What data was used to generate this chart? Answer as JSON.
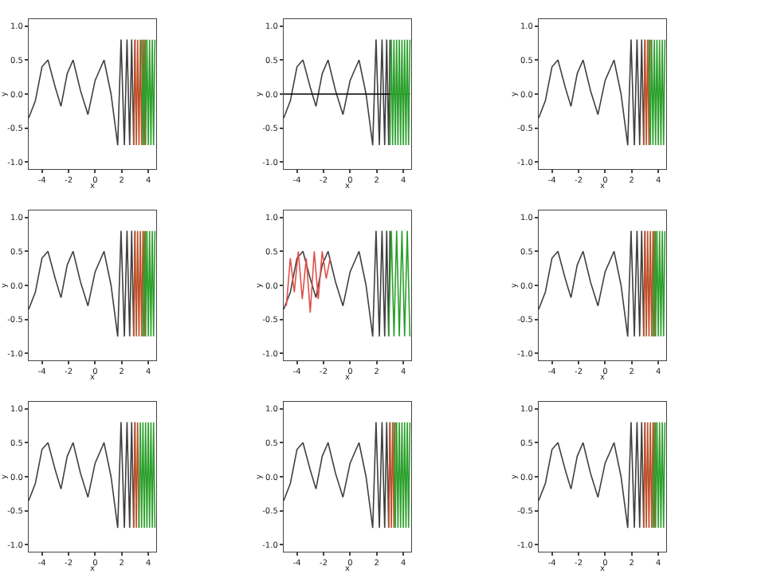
{
  "chart_data": [
    {
      "type": "line",
      "xlabel": "x",
      "ylabel": "y",
      "xlim": [
        -5,
        4.6
      ],
      "ylim": [
        -1.1,
        1.1
      ],
      "xticks": [
        -4,
        -2,
        0,
        2,
        4
      ],
      "yticks": [
        {
          "value": -1,
          "label": "-1.0"
        },
        {
          "value": -0.5,
          "label": "-0.5"
        },
        {
          "value": 0,
          "label": "0.0"
        },
        {
          "value": 0.5,
          "label": "0.5"
        },
        {
          "value": 1,
          "label": "1.0"
        }
      ],
      "series": [
        {
          "color": "#404040",
          "x": [
            -5,
            -4.5,
            -4,
            -3.55,
            -3,
            -2.57,
            -2.1,
            -1.66,
            -1.1,
            -0.54,
            0,
            0.67,
            1.2,
            1.7,
            1.95,
            2.2,
            2.4,
            2.6,
            2.75,
            2.9,
            3.0
          ],
          "values": [
            -0.35,
            -0.1,
            0.4,
            0.5,
            0.1,
            -0.18,
            0.3,
            0.5,
            0.05,
            -0.3,
            0.2,
            0.5,
            0.0,
            -0.75,
            0.8,
            -0.75,
            0.8,
            -0.75,
            0.8,
            -0.75,
            0.8
          ]
        },
        {
          "color": "#c0502a",
          "x": [
            2.9,
            3.0,
            3.1,
            3.2,
            3.3,
            3.4,
            3.5,
            3.6,
            3.7,
            3.8
          ],
          "values": [
            -0.75,
            0.8,
            -0.75,
            0.8,
            -0.75,
            0.8,
            -0.75,
            0.8,
            -0.75,
            0.8
          ]
        },
        {
          "color": "#2ca02c",
          "x": [
            3.5,
            3.6,
            3.7,
            3.8,
            3.9,
            4.0,
            4.1,
            4.2,
            4.3,
            4.4,
            4.5
          ],
          "values": [
            0.8,
            -0.75,
            0.8,
            -0.75,
            0.8,
            -0.75,
            0.8,
            -0.75,
            0.8,
            -0.75,
            0.8
          ]
        }
      ]
    },
    {
      "type": "line",
      "xlabel": "x",
      "ylabel": "y",
      "xlim": [
        -5,
        4.6
      ],
      "ylim": [
        -1.1,
        1.1
      ],
      "xticks": [
        -4,
        -2,
        0,
        2,
        4
      ],
      "yticks": [
        {
          "value": -1,
          "label": "-1.0"
        },
        {
          "value": -0.5,
          "label": "-0.5"
        },
        {
          "value": 0,
          "label": "0.0"
        },
        {
          "value": 0.5,
          "label": "0.5"
        },
        {
          "value": 1,
          "label": "1.0"
        }
      ],
      "series": [
        {
          "color": "#404040",
          "x": [
            -5,
            -4.5,
            -4,
            -3.55,
            -3,
            -2.57,
            -2.1,
            -1.66,
            -1.1,
            -0.54,
            0,
            0.67,
            1.2,
            1.7,
            1.95,
            2.2,
            2.4,
            2.6,
            2.75,
            2.9,
            3.0
          ],
          "values": [
            -0.35,
            -0.1,
            0.4,
            0.5,
            0.1,
            -0.18,
            0.3,
            0.5,
            0.05,
            -0.3,
            0.2,
            0.5,
            0.0,
            -0.75,
            0.8,
            -0.75,
            0.8,
            -0.75,
            0.8,
            -0.75,
            0.8
          ]
        },
        {
          "color": "#000000",
          "x": [
            -5,
            4.5
          ],
          "values": [
            0.0,
            0.0
          ]
        },
        {
          "color": "#2ca02c",
          "x": [
            3.0,
            3.1,
            3.2,
            3.3,
            3.4,
            3.5,
            3.6,
            3.7,
            3.8,
            3.9,
            4.0,
            4.1,
            4.2,
            4.3,
            4.4,
            4.5
          ],
          "values": [
            -0.75,
            0.8,
            -0.75,
            0.8,
            -0.75,
            0.8,
            -0.75,
            0.8,
            -0.75,
            0.8,
            -0.75,
            0.8,
            -0.75,
            0.8,
            -0.75,
            0.8
          ]
        }
      ]
    },
    {
      "type": "line",
      "xlabel": "x",
      "ylabel": "y",
      "xlim": [
        -5,
        4.6
      ],
      "ylim": [
        -1.1,
        1.1
      ],
      "xticks": [
        -4,
        -2,
        0,
        2,
        4
      ],
      "yticks": [
        {
          "value": -1,
          "label": "-1.0"
        },
        {
          "value": -0.5,
          "label": "-0.5"
        },
        {
          "value": 0,
          "label": "0.0"
        },
        {
          "value": 0.5,
          "label": "0.5"
        },
        {
          "value": 1,
          "label": "1.0"
        }
      ],
      "series": [
        {
          "color": "#404040",
          "x": [
            -5,
            -4.5,
            -4,
            -3.55,
            -3,
            -2.57,
            -2.1,
            -1.66,
            -1.1,
            -0.54,
            0,
            0.67,
            1.2,
            1.7,
            1.95,
            2.2,
            2.4,
            2.6,
            2.75,
            2.9,
            3.0
          ],
          "values": [
            -0.35,
            -0.1,
            0.4,
            0.5,
            0.1,
            -0.18,
            0.3,
            0.5,
            0.05,
            -0.3,
            0.2,
            0.5,
            0.0,
            -0.75,
            0.8,
            -0.75,
            0.8,
            -0.75,
            0.8,
            -0.75,
            0.8
          ]
        },
        {
          "color": "#c0502a",
          "x": [
            2.9,
            3.0,
            3.1,
            3.2,
            3.3,
            3.4
          ],
          "values": [
            -0.75,
            0.8,
            -0.75,
            0.8,
            -0.75,
            0.8
          ]
        },
        {
          "color": "#2ca02c",
          "x": [
            3.3,
            3.4,
            3.5,
            3.6,
            3.7,
            3.8,
            3.9,
            4.0,
            4.1,
            4.2,
            4.3,
            4.4,
            4.5
          ],
          "values": [
            0.8,
            -0.75,
            0.8,
            -0.75,
            0.8,
            -0.75,
            0.8,
            -0.75,
            0.8,
            -0.75,
            0.8,
            -0.75,
            0.8
          ]
        }
      ]
    },
    {
      "type": "line",
      "xlabel": "x",
      "ylabel": "y",
      "xlim": [
        -5,
        4.6
      ],
      "ylim": [
        -1.1,
        1.1
      ],
      "xticks": [
        -4,
        -2,
        0,
        2,
        4
      ],
      "yticks": [
        {
          "value": -1,
          "label": "-1.0"
        },
        {
          "value": -0.5,
          "label": "-0.5"
        },
        {
          "value": 0,
          "label": "0.0"
        },
        {
          "value": 0.5,
          "label": "0.5"
        },
        {
          "value": 1,
          "label": "1.0"
        }
      ],
      "series": [
        {
          "color": "#404040",
          "x": [
            -5,
            -4.5,
            -4,
            -3.55,
            -3,
            -2.57,
            -2.1,
            -1.66,
            -1.1,
            -0.54,
            0,
            0.67,
            1.2,
            1.7,
            1.95,
            2.2,
            2.4,
            2.6,
            2.75,
            2.9,
            3.0
          ],
          "values": [
            -0.35,
            -0.1,
            0.4,
            0.5,
            0.1,
            -0.18,
            0.3,
            0.5,
            0.05,
            -0.3,
            0.2,
            0.5,
            0.0,
            -0.75,
            0.8,
            -0.75,
            0.8,
            -0.75,
            0.8,
            -0.75,
            0.8
          ]
        },
        {
          "color": "#c0502a",
          "x": [
            2.9,
            3.0,
            3.1,
            3.2,
            3.3,
            3.4,
            3.5,
            3.6,
            3.7,
            3.8
          ],
          "values": [
            -0.75,
            0.8,
            -0.75,
            0.8,
            -0.75,
            0.8,
            -0.75,
            0.8,
            -0.75,
            0.8
          ]
        },
        {
          "color": "#2ca02c",
          "x": [
            3.6,
            3.7,
            3.8,
            3.9,
            4.0,
            4.1,
            4.2,
            4.3,
            4.4,
            4.5
          ],
          "values": [
            -0.75,
            0.8,
            -0.75,
            0.8,
            -0.75,
            0.8,
            -0.75,
            0.8,
            -0.75,
            0.8
          ]
        }
      ]
    },
    {
      "type": "line",
      "xlabel": "x",
      "ylabel": "y",
      "xlim": [
        -5,
        4.6
      ],
      "ylim": [
        -1.1,
        1.1
      ],
      "xticks": [
        -4,
        -2,
        0,
        2,
        4
      ],
      "yticks": [
        {
          "value": -1,
          "label": "-1.0"
        },
        {
          "value": -0.5,
          "label": "-0.5"
        },
        {
          "value": 0,
          "label": "0.0"
        },
        {
          "value": 0.5,
          "label": "0.5"
        },
        {
          "value": 1,
          "label": "1.0"
        }
      ],
      "series": [
        {
          "color": "#404040",
          "x": [
            -5,
            -4.5,
            -4,
            -3.55,
            -3,
            -2.57,
            -2.1,
            -1.66,
            -1.1,
            -0.54,
            0,
            0.67,
            1.2,
            1.7,
            1.95,
            2.2,
            2.4,
            2.6,
            2.75,
            2.9,
            3.0
          ],
          "values": [
            -0.35,
            -0.1,
            0.4,
            0.5,
            0.1,
            -0.18,
            0.3,
            0.5,
            0.05,
            -0.3,
            0.2,
            0.5,
            0.0,
            -0.75,
            0.8,
            -0.75,
            0.8,
            -0.75,
            0.8,
            -0.75,
            0.8
          ]
        },
        {
          "color": "#e0504a",
          "x": [
            -4.8,
            -4.5,
            -4.2,
            -3.9,
            -3.6,
            -3.3,
            -3.0,
            -2.7,
            -2.4,
            -2.1,
            -1.8,
            -1.5
          ],
          "values": [
            -0.3,
            0.4,
            -0.1,
            0.5,
            -0.2,
            0.4,
            -0.4,
            0.5,
            -0.2,
            0.5,
            0.1,
            0.4
          ]
        },
        {
          "color": "#2ca02c",
          "x": [
            2.9,
            3.1,
            3.3,
            3.5,
            3.7,
            3.9,
            4.1,
            4.3,
            4.5
          ],
          "values": [
            -0.75,
            0.8,
            -0.75,
            0.8,
            -0.75,
            0.8,
            -0.75,
            0.8,
            -0.75
          ]
        }
      ]
    },
    {
      "type": "line",
      "xlabel": "x",
      "ylabel": "y",
      "xlim": [
        -5,
        4.6
      ],
      "ylim": [
        -1.1,
        1.1
      ],
      "xticks": [
        -4,
        -2,
        0,
        2,
        4
      ],
      "yticks": [
        {
          "value": -1,
          "label": "-1.0"
        },
        {
          "value": -0.5,
          "label": "-0.5"
        },
        {
          "value": 0,
          "label": "0.0"
        },
        {
          "value": 0.5,
          "label": "0.5"
        },
        {
          "value": 1,
          "label": "1.0"
        }
      ],
      "series": [
        {
          "color": "#404040",
          "x": [
            -5,
            -4.5,
            -4,
            -3.55,
            -3,
            -2.57,
            -2.1,
            -1.66,
            -1.1,
            -0.54,
            0,
            0.67,
            1.2,
            1.7,
            1.95,
            2.2,
            2.4,
            2.6,
            2.75,
            2.9,
            3.0
          ],
          "values": [
            -0.35,
            -0.1,
            0.4,
            0.5,
            0.1,
            -0.18,
            0.3,
            0.5,
            0.05,
            -0.3,
            0.2,
            0.5,
            0.0,
            -0.75,
            0.8,
            -0.75,
            0.8,
            -0.75,
            0.8,
            -0.75,
            0.8
          ]
        },
        {
          "color": "#c0502a",
          "x": [
            2.9,
            3.0,
            3.1,
            3.2,
            3.3,
            3.4,
            3.5,
            3.6,
            3.7,
            3.8
          ],
          "values": [
            -0.75,
            0.8,
            -0.75,
            0.8,
            -0.75,
            0.8,
            -0.75,
            0.8,
            -0.75,
            0.8
          ]
        },
        {
          "color": "#2ca02c",
          "x": [
            3.6,
            3.7,
            3.8,
            3.9,
            4.0,
            4.1,
            4.2,
            4.3,
            4.4,
            4.5
          ],
          "values": [
            -0.75,
            0.8,
            -0.75,
            0.8,
            -0.75,
            0.8,
            -0.75,
            0.8,
            -0.75,
            0.8
          ]
        }
      ]
    },
    {
      "type": "line",
      "xlabel": "x",
      "ylabel": "y",
      "xlim": [
        -5,
        4.6
      ],
      "ylim": [
        -1.1,
        1.1
      ],
      "xticks": [
        -4,
        -2,
        0,
        2,
        4
      ],
      "yticks": [
        {
          "value": -1,
          "label": "-1.0"
        },
        {
          "value": -0.5,
          "label": "-0.5"
        },
        {
          "value": 0,
          "label": "0.0"
        },
        {
          "value": 0.5,
          "label": "0.5"
        },
        {
          "value": 1,
          "label": "1.0"
        }
      ],
      "series": [
        {
          "color": "#404040",
          "x": [
            -5,
            -4.5,
            -4,
            -3.55,
            -3,
            -2.57,
            -2.1,
            -1.66,
            -1.1,
            -0.54,
            0,
            0.67,
            1.2,
            1.7,
            1.95,
            2.2,
            2.4,
            2.6,
            2.75,
            2.9,
            3.0
          ],
          "values": [
            -0.35,
            -0.1,
            0.4,
            0.5,
            0.1,
            -0.18,
            0.3,
            0.5,
            0.05,
            -0.3,
            0.2,
            0.5,
            0.0,
            -0.75,
            0.8,
            -0.75,
            0.8,
            -0.75,
            0.8,
            -0.75,
            0.8
          ]
        },
        {
          "color": "#c0502a",
          "x": [
            2.9,
            3.0,
            3.1,
            3.2,
            3.3
          ],
          "values": [
            -0.75,
            0.8,
            -0.75,
            0.8,
            -0.75
          ]
        },
        {
          "color": "#2ca02c",
          "x": [
            3.3,
            3.4,
            3.5,
            3.6,
            3.7,
            3.8,
            3.9,
            4.0,
            4.1,
            4.2,
            4.3,
            4.4,
            4.5
          ],
          "values": [
            -0.75,
            0.8,
            -0.75,
            0.8,
            -0.75,
            0.8,
            -0.75,
            0.8,
            -0.75,
            0.8,
            -0.75,
            0.8,
            -0.75
          ]
        }
      ]
    },
    {
      "type": "line",
      "xlabel": "x",
      "ylabel": "y",
      "xlim": [
        -5,
        4.6
      ],
      "ylim": [
        -1.1,
        1.1
      ],
      "xticks": [
        -4,
        -2,
        0,
        2,
        4
      ],
      "yticks": [
        {
          "value": -1,
          "label": "-1.0"
        },
        {
          "value": -0.5,
          "label": "-0.5"
        },
        {
          "value": 0,
          "label": "0.0"
        },
        {
          "value": 0.5,
          "label": "0.5"
        },
        {
          "value": 1,
          "label": "1.0"
        }
      ],
      "series": [
        {
          "color": "#404040",
          "x": [
            -5,
            -4.5,
            -4,
            -3.55,
            -3,
            -2.57,
            -2.1,
            -1.66,
            -1.1,
            -0.54,
            0,
            0.67,
            1.2,
            1.7,
            1.95,
            2.2,
            2.4,
            2.6,
            2.75,
            2.9,
            3.0
          ],
          "values": [
            -0.35,
            -0.1,
            0.4,
            0.5,
            0.1,
            -0.18,
            0.3,
            0.5,
            0.05,
            -0.3,
            0.2,
            0.5,
            0.0,
            -0.75,
            0.8,
            -0.75,
            0.8,
            -0.75,
            0.8,
            -0.75,
            0.8
          ]
        },
        {
          "color": "#c0502a",
          "x": [
            2.9,
            3.0,
            3.1,
            3.2,
            3.3,
            3.4
          ],
          "values": [
            -0.75,
            0.8,
            -0.75,
            0.8,
            -0.75,
            0.8
          ]
        },
        {
          "color": "#2ca02c",
          "x": [
            3.3,
            3.4,
            3.5,
            3.6,
            3.7,
            3.8,
            3.9,
            4.0,
            4.1,
            4.2,
            4.3,
            4.4,
            4.5
          ],
          "values": [
            0.8,
            -0.75,
            0.8,
            -0.75,
            0.8,
            -0.75,
            0.8,
            -0.75,
            0.8,
            -0.75,
            0.8,
            -0.75,
            0.8
          ]
        }
      ]
    },
    {
      "type": "line",
      "xlabel": "x",
      "ylabel": "y",
      "xlim": [
        -5,
        4.6
      ],
      "ylim": [
        -1.1,
        1.1
      ],
      "xticks": [
        -4,
        -2,
        0,
        2,
        4
      ],
      "yticks": [
        {
          "value": -1,
          "label": "-1.0"
        },
        {
          "value": -0.5,
          "label": "-0.5"
        },
        {
          "value": 0,
          "label": "0.0"
        },
        {
          "value": 0.5,
          "label": "0.5"
        },
        {
          "value": 1,
          "label": "1.0"
        }
      ],
      "series": [
        {
          "color": "#404040",
          "x": [
            -5,
            -4.5,
            -4,
            -3.55,
            -3,
            -2.57,
            -2.1,
            -1.66,
            -1.1,
            -0.54,
            0,
            0.67,
            1.2,
            1.7,
            1.95,
            2.2,
            2.4,
            2.6,
            2.75,
            2.9,
            3.0
          ],
          "values": [
            -0.35,
            -0.1,
            0.4,
            0.5,
            0.1,
            -0.18,
            0.3,
            0.5,
            0.05,
            -0.3,
            0.2,
            0.5,
            0.0,
            -0.75,
            0.8,
            -0.75,
            0.8,
            -0.75,
            0.8,
            -0.75,
            0.8
          ]
        },
        {
          "color": "#c0502a",
          "x": [
            2.9,
            3.0,
            3.1,
            3.2,
            3.3,
            3.4,
            3.5,
            3.6,
            3.7,
            3.8
          ],
          "values": [
            -0.75,
            0.8,
            -0.75,
            0.8,
            -0.75,
            0.8,
            -0.75,
            0.8,
            -0.75,
            0.8
          ]
        },
        {
          "color": "#2ca02c",
          "x": [
            3.6,
            3.7,
            3.8,
            3.9,
            4.0,
            4.1,
            4.2,
            4.3,
            4.4,
            4.5
          ],
          "values": [
            -0.75,
            0.8,
            -0.75,
            0.8,
            -0.75,
            0.8,
            -0.75,
            0.8,
            -0.75,
            0.8
          ]
        }
      ]
    }
  ]
}
